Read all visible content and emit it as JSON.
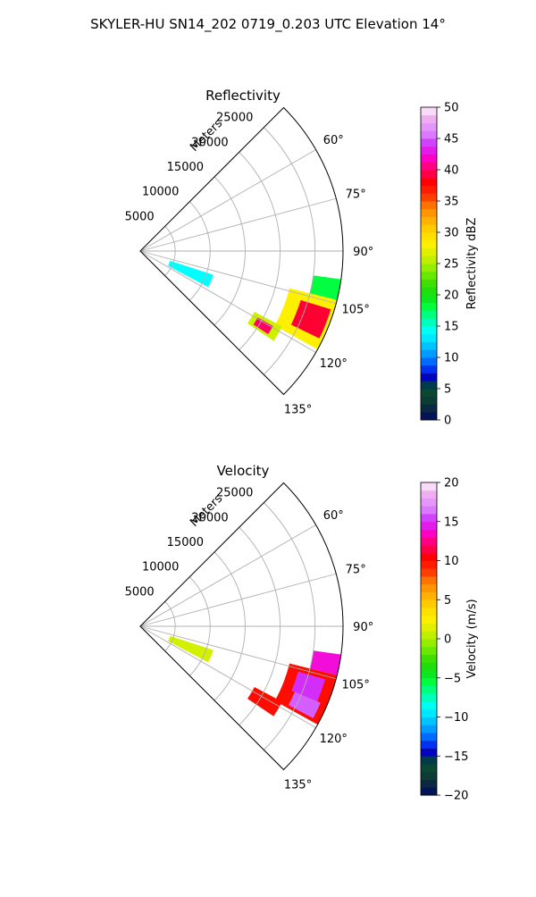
{
  "figure": {
    "title": "SKYLER-HU  SN14_202  0719_0.203 UTC Elevation 14°"
  },
  "chart_data": [
    {
      "type": "heatmap",
      "subtype": "polar-sector-radar-ppi",
      "title": "Reflectivity",
      "radial_label": "Meters",
      "range_ticks": [
        5000,
        10000,
        15000,
        20000,
        25000
      ],
      "range_tick_labels": [
        "5000",
        "10000",
        "15000",
        "20000",
        "25000"
      ],
      "azimuth_ticks": [
        60,
        75,
        90,
        105,
        120,
        135
      ],
      "azimuth_tick_labels": [
        "60°",
        "75°",
        "90°",
        "105°",
        "120°",
        "135°"
      ],
      "azimuth_range": [
        45,
        135
      ],
      "r_max": 29000,
      "grid": true,
      "colorbar": {
        "label": "Reflectivity dBZ",
        "vmin": 0,
        "vmax": 50,
        "ticks": [
          0,
          5,
          10,
          15,
          20,
          25,
          30,
          35,
          40,
          45,
          50
        ],
        "tick_labels": [
          "0",
          "5",
          "10",
          "15",
          "20",
          "25",
          "30",
          "35",
          "40",
          "45",
          "50"
        ]
      },
      "echo_regions": [
        {
          "az_start": 108,
          "az_end": 118,
          "r_start": 4500,
          "r_end": 11000,
          "value": 14
        },
        {
          "az_start": 98,
          "az_end": 104,
          "r_start": 25000,
          "r_end": 29000,
          "value": 18
        },
        {
          "az_start": 104,
          "az_end": 119,
          "r_start": 22000,
          "r_end": 29000,
          "value": 28
        },
        {
          "az_start": 107,
          "az_end": 116,
          "r_start": 24000,
          "r_end": 28500,
          "value": 39
        },
        {
          "az_start": 118,
          "az_end": 124,
          "r_start": 18500,
          "r_end": 23000,
          "value": 26
        },
        {
          "az_start": 119.5,
          "az_end": 123,
          "r_start": 19300,
          "r_end": 21800,
          "value": 40
        }
      ]
    },
    {
      "type": "heatmap",
      "subtype": "polar-sector-radar-ppi",
      "title": "Velocity",
      "radial_label": "Meters",
      "range_ticks": [
        5000,
        10000,
        15000,
        20000,
        25000
      ],
      "range_tick_labels": [
        "5000",
        "10000",
        "15000",
        "20000",
        "25000"
      ],
      "azimuth_ticks": [
        60,
        75,
        90,
        105,
        120,
        135
      ],
      "azimuth_tick_labels": [
        "60°",
        "75°",
        "90°",
        "105°",
        "120°",
        "135°"
      ],
      "azimuth_range": [
        45,
        135
      ],
      "r_max": 29000,
      "grid": true,
      "colorbar": {
        "label": "Velocity (m/s)",
        "vmin": -20,
        "vmax": 20,
        "ticks": [
          -20,
          -15,
          -10,
          -5,
          0,
          5,
          10,
          15,
          20
        ],
        "tick_labels": [
          "−20",
          "−15",
          "−10",
          "−5",
          "0",
          "5",
          "10",
          "15",
          "20"
        ]
      },
      "echo_regions": [
        {
          "az_start": 108,
          "az_end": 118,
          "r_start": 4500,
          "r_end": 11000,
          "value": 1
        },
        {
          "az_start": 98,
          "az_end": 104,
          "r_start": 25000,
          "r_end": 29000,
          "value": 14
        },
        {
          "az_start": 104,
          "az_end": 119,
          "r_start": 22000,
          "r_end": 29000,
          "value": 10
        },
        {
          "az_start": 106,
          "az_end": 113,
          "r_start": 23500,
          "r_end": 27500,
          "value": 15
        },
        {
          "az_start": 113,
          "az_end": 118,
          "r_start": 24000,
          "r_end": 28000,
          "value": 16
        },
        {
          "az_start": 118,
          "az_end": 124,
          "r_start": 18500,
          "r_end": 23000,
          "value": 10
        }
      ]
    }
  ]
}
